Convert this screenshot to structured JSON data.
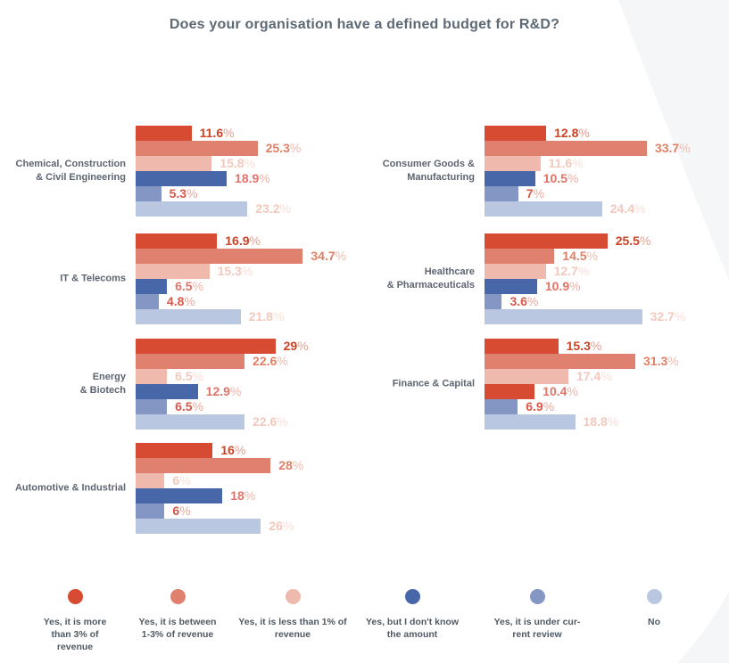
{
  "chart_data": {
    "type": "bar",
    "orientation": "horizontal",
    "unit": "percent",
    "title": "Does your organisation have a defined budget for R&D?",
    "grid": false,
    "legend_position": "bottom",
    "series_labels": [
      "Yes, it is more than 3% of revenue",
      "Yes, it is between 1-3% of revenue",
      "Yes, it is less than 1% of revenue",
      "Yes, but I don't know the amount",
      "Yes, it is under current review",
      "No"
    ],
    "palette": [
      "#d64b31",
      "#e08170",
      "#f0b9ae",
      "#4867a9",
      "#8497c4",
      "#b9c7e1"
    ],
    "value_label_colors": [
      "#cc4425",
      "#e08166",
      "#f3c8bc",
      "#e0746a",
      "#d8584a",
      "#f3c8bc"
    ],
    "percent_sign_colors": [
      "#e5a093",
      "#efbcae",
      "#f9ded7",
      "#f0b3a9",
      "#eba89d",
      "#f9ded7"
    ],
    "groups": [
      {
        "name": "Chemical, Construction\n& Civil Engineering",
        "column": "left",
        "values": [
          11.6,
          25.3,
          15.8,
          18.9,
          5.3,
          23.2
        ]
      },
      {
        "name": "Consumer Goods &\nManufacturing",
        "column": "right",
        "values": [
          12.8,
          33.7,
          11.6,
          10.5,
          7,
          24.4
        ]
      },
      {
        "name": "IT & Telecoms",
        "column": "left",
        "values": [
          16.9,
          34.7,
          15.3,
          6.5,
          4.8,
          21.8
        ]
      },
      {
        "name": "Healthcare\n& Pharmaceuticals",
        "column": "right",
        "values": [
          25.5,
          14.5,
          12.7,
          10.9,
          3.6,
          32.7
        ]
      },
      {
        "name": "Energy\n& Biotech",
        "column": "left",
        "values": [
          29,
          22.6,
          6.5,
          12.9,
          6.5,
          22.6
        ]
      },
      {
        "name": "Finance & Capital",
        "column": "right",
        "values": [
          15.3,
          31.3,
          17.4,
          10.4,
          6.9,
          18.8
        ],
        "bar_color_overrides": {
          "3": "#d64b31"
        }
      },
      {
        "name": "Automotive & Industrial",
        "column": "left",
        "values": [
          16,
          28,
          6,
          18,
          6,
          26
        ]
      }
    ]
  },
  "legend": {
    "items": [
      {
        "label": "Yes, it is more\nthan 3% of\nrevenue",
        "color": "#d64b31"
      },
      {
        "label": "Yes, it is between\n1-3% of revenue",
        "color": "#e08170"
      },
      {
        "label": "Yes, it is less than 1% of\nrevenue",
        "color": "#f0b9ae"
      },
      {
        "label": "Yes, but I don't know\nthe amount",
        "color": "#4867a9"
      },
      {
        "label": "Yes, it is under cur-\nrent review",
        "color": "#8497c4"
      },
      {
        "label": "No",
        "color": "#b9c7e1"
      }
    ]
  },
  "background": {
    "swoosh_color": "#f4f6f8"
  }
}
